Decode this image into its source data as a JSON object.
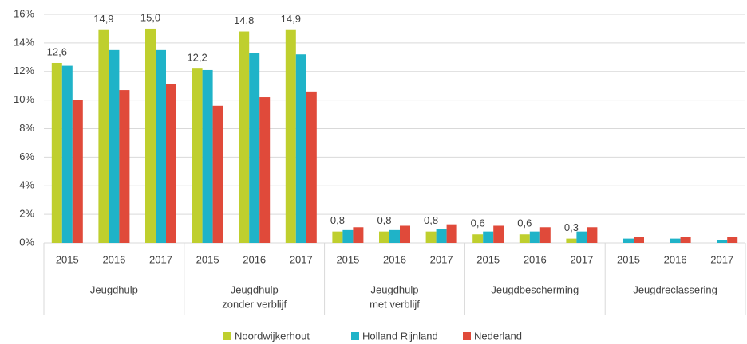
{
  "chart_data": {
    "type": "bar",
    "categories": [
      "2015",
      "2016",
      "2017",
      "2015",
      "2016",
      "2017",
      "2015",
      "2016",
      "2017",
      "2015",
      "2016",
      "2017",
      "2015",
      "2016",
      "2017"
    ],
    "groups": [
      [
        "Jeugdhulp"
      ],
      [
        "Jeugdhulp",
        "zonder verblijf"
      ],
      [
        "Jeugdhulp",
        "met verblijf"
      ],
      [
        "Jeugdbescherming"
      ],
      [
        "Jeugdreclassering"
      ]
    ],
    "series": [
      {
        "name": "Noordwijkerhout",
        "color": "#bfcf2e",
        "values": [
          12.6,
          14.9,
          15.0,
          12.2,
          14.8,
          14.9,
          0.8,
          0.8,
          0.8,
          0.6,
          0.6,
          0.3,
          null,
          null,
          null
        ],
        "value_labels": [
          "12,6",
          "14,9",
          "15,0",
          "12,2",
          "14,8",
          "14,9",
          "0,8",
          "0,8",
          "0,8",
          "0,6",
          "0,6",
          "0,3",
          null,
          null,
          null
        ]
      },
      {
        "name": "Holland Rijnland",
        "color": "#1fb3c8",
        "values": [
          12.4,
          13.5,
          13.5,
          12.1,
          13.3,
          13.2,
          0.9,
          0.9,
          1.0,
          0.8,
          0.8,
          0.8,
          0.3,
          0.3,
          0.2
        ]
      },
      {
        "name": "Nederland",
        "color": "#e04a3a",
        "values": [
          10.0,
          10.7,
          11.1,
          9.6,
          10.2,
          10.6,
          1.1,
          1.2,
          1.3,
          1.2,
          1.1,
          1.1,
          0.4,
          0.4,
          0.4
        ]
      }
    ],
    "ylim": [
      0,
      16
    ],
    "yticks": [
      {
        "value": 0,
        "label": "0%"
      },
      {
        "value": 2,
        "label": "2%"
      },
      {
        "value": 4,
        "label": "4%"
      },
      {
        "value": 6,
        "label": "6%"
      },
      {
        "value": 8,
        "label": "8%"
      },
      {
        "value": 10,
        "label": "10%"
      },
      {
        "value": 12,
        "label": "12%"
      },
      {
        "value": 14,
        "label": "14%"
      },
      {
        "value": 16,
        "label": "16%"
      }
    ],
    "grid": true
  }
}
